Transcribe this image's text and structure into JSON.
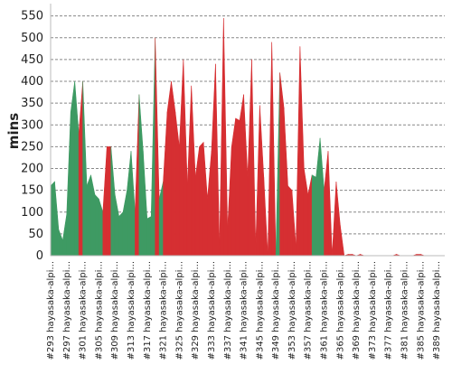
{
  "chart_data": {
    "type": "area",
    "title": "",
    "ylabel": "mins",
    "xlabel": "",
    "ylim": [
      0,
      570
    ],
    "y_ticks": [
      0,
      50,
      100,
      150,
      200,
      250,
      300,
      350,
      400,
      450,
      500,
      550
    ],
    "grid": true,
    "x": [
      "#293 hayasaka-alpi...",
      "#294",
      "#295",
      "#296",
      "#297 hayasaka-alpi...",
      "#298",
      "#299",
      "#300",
      "#301 hayasaka-alpi...",
      "#302",
      "#303",
      "#304",
      "#305 hayasaka-alpi...",
      "#306",
      "#307",
      "#308",
      "#309 hayasaka-alpi...",
      "#310",
      "#311",
      "#312",
      "#313 hayasaka-alpi...",
      "#314",
      "#315",
      "#316",
      "#317 hayasaka-alpi...",
      "#318",
      "#319",
      "#320",
      "#321 hayasaka-alpi...",
      "#322",
      "#323",
      "#324",
      "#325 hayasaka-alpi...",
      "#326",
      "#327",
      "#328",
      "#329 hayasaka-alpi...",
      "#330",
      "#331",
      "#332",
      "#333 hayasaka-alpi...",
      "#334",
      "#335",
      "#336",
      "#337 hayasaka-alpi...",
      "#338",
      "#339",
      "#340",
      "#341 hayasaka-alpi...",
      "#342",
      "#343",
      "#344",
      "#345 hayasaka-alpi...",
      "#346",
      "#347",
      "#348",
      "#349 hayasaka-alpi...",
      "#350",
      "#351",
      "#352",
      "#353 hayasaka-alpi...",
      "#354",
      "#355",
      "#356",
      "#357 hayasaka-alpi...",
      "#358",
      "#359",
      "#360",
      "#361 hayasaka-alpi...",
      "#362",
      "#363",
      "#364",
      "#365 hayasaka-alpi...",
      "#366",
      "#367",
      "#368",
      "#369 hayasaka-alpi...",
      "#370",
      "#371",
      "#372",
      "#373 hayasaka-alpi...",
      "#374",
      "#375",
      "#376",
      "#377 hayasaka-alpi...",
      "#378",
      "#379",
      "#380",
      "#381 hayasaka-alpi...",
      "#382",
      "#383",
      "#384",
      "#385 hayasaka-alpi...",
      "#386",
      "#387",
      "#388",
      "#389 hayasaka-alpi...",
      "#390",
      "#391"
    ],
    "tick_every": 4,
    "values": [
      160,
      170,
      60,
      35,
      95,
      330,
      400,
      280,
      400,
      160,
      185,
      140,
      130,
      100,
      250,
      250,
      140,
      90,
      100,
      150,
      240,
      100,
      370,
      240,
      85,
      90,
      500,
      130,
      170,
      330,
      400,
      330,
      250,
      450,
      160,
      390,
      180,
      250,
      260,
      130,
      240,
      440,
      20,
      545,
      60,
      250,
      315,
      310,
      370,
      180,
      450,
      20,
      345,
      180,
      0,
      490,
      0,
      420,
      340,
      160,
      150,
      20,
      480,
      200,
      140,
      185,
      180,
      270,
      150,
      240,
      0,
      170,
      70,
      0,
      3,
      3,
      0,
      3,
      0,
      0,
      0,
      0,
      0,
      0,
      0,
      0,
      3,
      0,
      0,
      0,
      0,
      3,
      3,
      0,
      0,
      0,
      0,
      0,
      0
    ],
    "status": [
      "success",
      "success",
      "success",
      "success",
      "success",
      "success",
      "success",
      "failure",
      "success",
      "success",
      "success",
      "success",
      "success",
      "failure",
      "failure",
      "success",
      "success",
      "success",
      "success",
      "success",
      "success",
      "failure",
      "success",
      "success",
      "success",
      "success",
      "failure",
      "success",
      "failure",
      "failure",
      "failure",
      "failure",
      "failure",
      "failure",
      "failure",
      "failure",
      "failure",
      "failure",
      "failure",
      "failure",
      "failure",
      "failure",
      "failure",
      "failure",
      "failure",
      "failure",
      "failure",
      "failure",
      "failure",
      "failure",
      "failure",
      "failure",
      "failure",
      "failure",
      "failure",
      "failure",
      "success",
      "failure",
      "failure",
      "failure",
      "failure",
      "failure",
      "failure",
      "failure",
      "failure",
      "success",
      "success",
      "success",
      "failure",
      "failure",
      "failure",
      "failure",
      "failure",
      "failure",
      "failure",
      "failure",
      "failure",
      "failure",
      "failure",
      "failure",
      "failure",
      "failure",
      "failure",
      "failure",
      "failure",
      "failure",
      "failure",
      "failure",
      "failure",
      "failure",
      "failure",
      "failure",
      "failure",
      "failure",
      "failure",
      "failure",
      "failure",
      "failure",
      "failure"
    ],
    "colors": {
      "success": "#3e9a63",
      "failure": "#d62f32",
      "grid": "#888888",
      "axis": "#bbbbbb"
    }
  }
}
